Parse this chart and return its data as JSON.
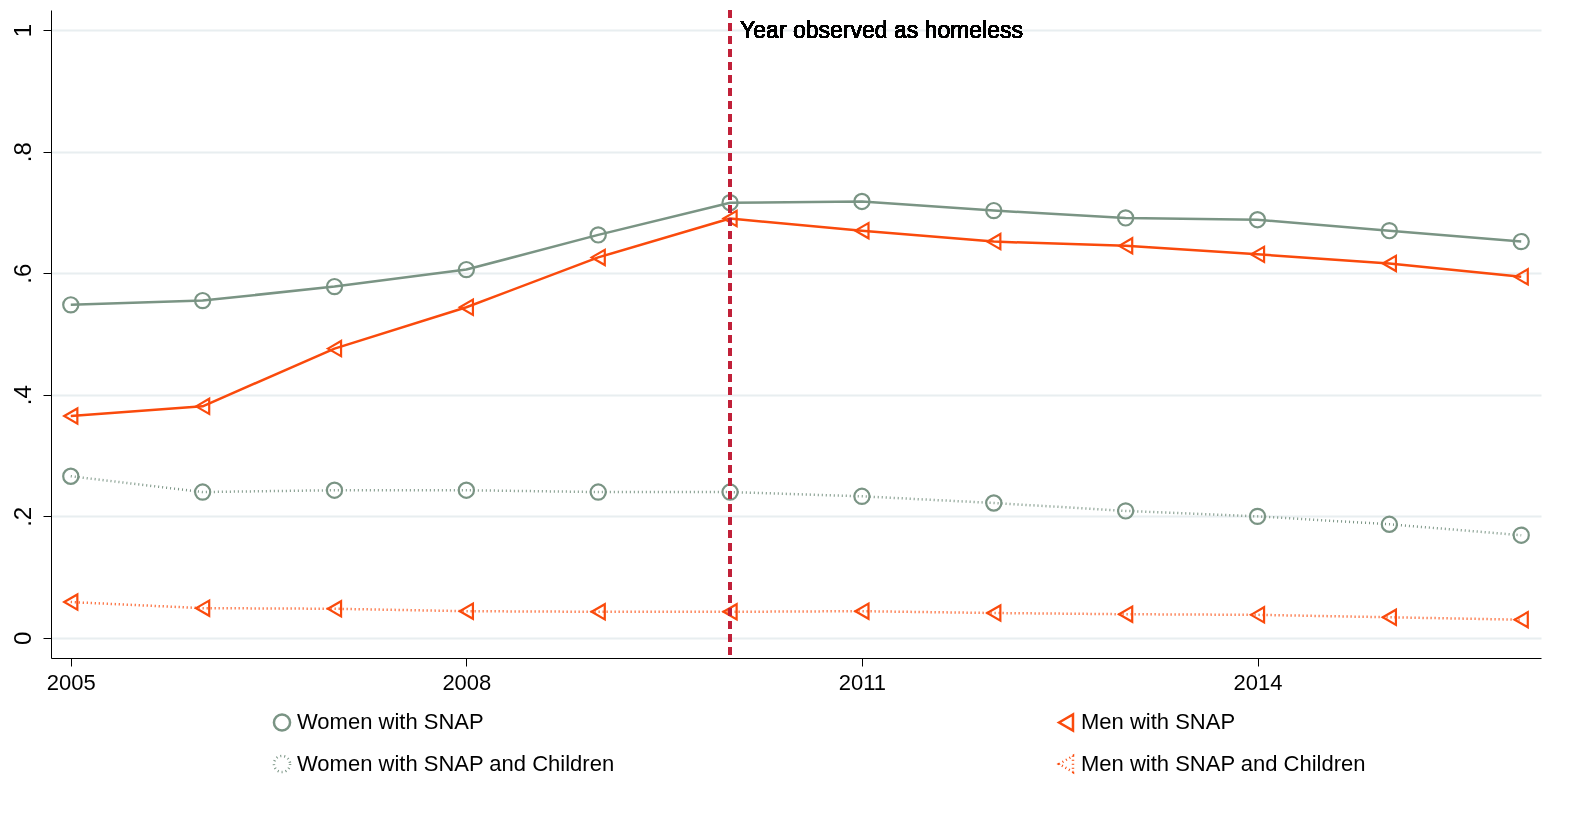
{
  "chart_data": {
    "type": "line",
    "x": [
      2005,
      2006,
      2007,
      2008,
      2009,
      2010,
      2011,
      2012,
      2013,
      2014,
      2015,
      2016
    ],
    "series": [
      {
        "name": "Women with SNAP",
        "color": "#7a9484",
        "marker": "circle",
        "line_style": "solid",
        "values": [
          0.548,
          0.555,
          0.578,
          0.606,
          0.663,
          0.716,
          0.718,
          0.703,
          0.691,
          0.688,
          0.67,
          0.652
        ]
      },
      {
        "name": "Men with SNAP",
        "color": "#fa4a0c",
        "marker": "triangle",
        "line_style": "solid",
        "values": [
          0.365,
          0.381,
          0.476,
          0.544,
          0.626,
          0.69,
          0.67,
          0.652,
          0.645,
          0.631,
          0.616,
          0.594
        ]
      },
      {
        "name": "Women with SNAP and Children",
        "color": "#7a9484",
        "marker": "circle",
        "line_style": "dotted",
        "values": [
          0.266,
          0.24,
          0.243,
          0.243,
          0.24,
          0.24,
          0.233,
          0.222,
          0.209,
          0.2,
          0.187,
          0.169
        ]
      },
      {
        "name": "Men with SNAP and Children",
        "color": "#fa4a0c",
        "marker": "triangle",
        "line_style": "dotted",
        "values": [
          0.059,
          0.049,
          0.048,
          0.044,
          0.043,
          0.043,
          0.044,
          0.041,
          0.039,
          0.038,
          0.034,
          0.03
        ]
      }
    ],
    "xlim": [
      2004.85,
      2016.15
    ],
    "xticks": [
      2005,
      2008,
      2011,
      2014
    ],
    "ylim": [
      -0.033,
      1.033
    ],
    "yticks": [
      0,
      {
        "value": 0.2,
        "label": ".2"
      },
      {
        "value": 0.4,
        "label": ".4"
      },
      {
        "value": 0.6,
        "label": ".6"
      },
      {
        "value": 0.8,
        "label": ".8"
      },
      1
    ],
    "ref_lines": [
      {
        "axis": "x",
        "value": 2010,
        "label": "Year observed as homeless",
        "color": "#c0213a",
        "line_style": "dashed"
      }
    ],
    "grid": "y",
    "legend": "bottom"
  }
}
